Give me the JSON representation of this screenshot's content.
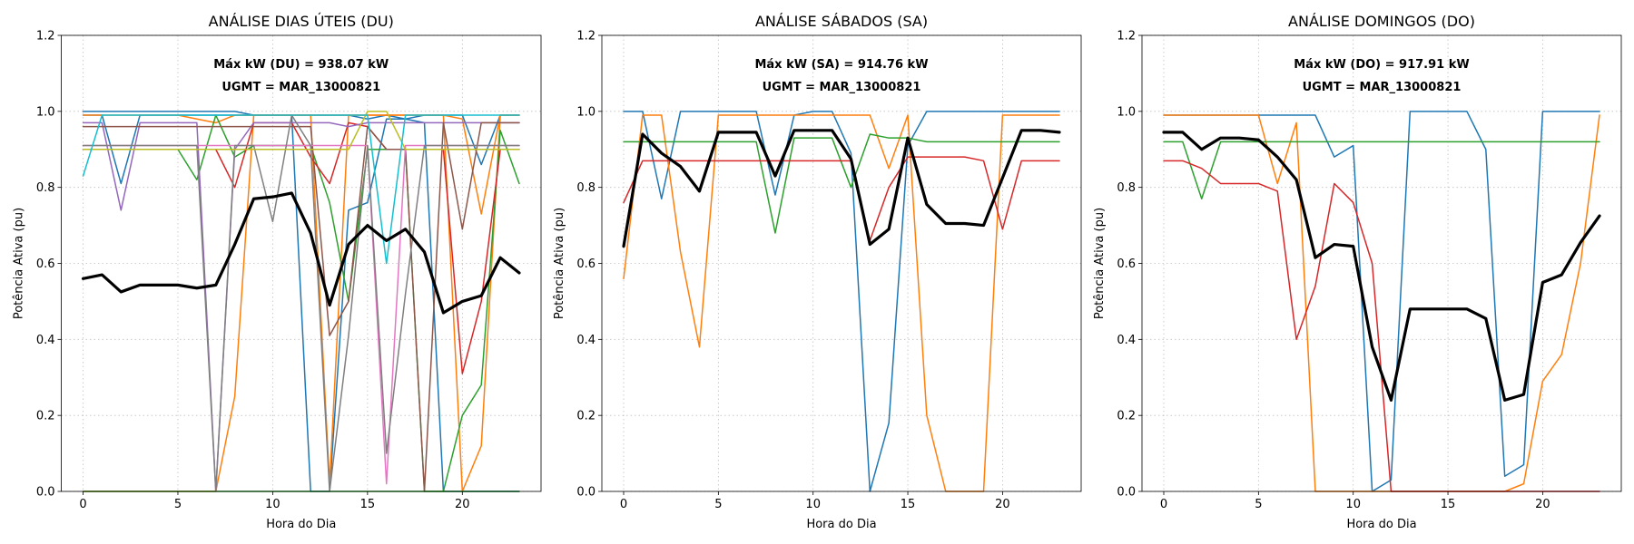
{
  "chart_data": [
    {
      "type": "line",
      "title": "ANÁLISE DIAS ÚTEIS (DU)",
      "annotation_lines": [
        "Máx kW (DU) = 938.07 kW",
        "UGMT = MAR_13000821"
      ],
      "xlabel": "Hora do Dia",
      "ylabel": "Potência Ativa (pu)",
      "xlim": [
        -1.15,
        24.15
      ],
      "ylim": [
        0,
        1.2
      ],
      "xticks": [
        0,
        5,
        10,
        15,
        20
      ],
      "yticks": [
        0.0,
        0.2,
        0.4,
        0.6,
        0.8,
        1.0,
        1.2
      ],
      "grid": true,
      "x": [
        0,
        1,
        2,
        3,
        4,
        5,
        6,
        7,
        8,
        9,
        10,
        11,
        12,
        13,
        14,
        15,
        16,
        17,
        18,
        19,
        20,
        21,
        22,
        23
      ],
      "series": [
        {
          "color": "#1f77b4",
          "values": [
            1.0,
            1.0,
            1.0,
            1.0,
            1.0,
            1.0,
            1.0,
            1.0,
            1.0,
            0.99,
            0.99,
            0.99,
            0.0,
            0.0,
            0.74,
            0.76,
            0.98,
            0.98,
            0.97,
            0.0,
            0.0,
            0.0,
            0.0,
            0.0
          ]
        },
        {
          "color": "#1f77b4",
          "values": [
            0.99,
            0.99,
            0.81,
            0.99,
            0.99,
            0.99,
            0.99,
            0.99,
            0.99,
            0.99,
            0.99,
            0.99,
            0.99,
            0.99,
            0.99,
            0.98,
            0.99,
            0.98,
            0.99,
            0.99,
            0.99,
            0.86,
            0.99,
            0.99
          ]
        },
        {
          "color": "#ff7f0e",
          "values": [
            0.0,
            0.0,
            0.0,
            0.0,
            0.0,
            0.0,
            0.0,
            0.0,
            0.25,
            0.99,
            0.99,
            0.99,
            0.99,
            0.02,
            0.99,
            0.99,
            0.99,
            0.99,
            0.99,
            0.99,
            0.0,
            0.12,
            0.99,
            0.99
          ]
        },
        {
          "color": "#ff7f0e",
          "values": [
            0.99,
            0.99,
            0.99,
            0.99,
            0.99,
            0.99,
            0.98,
            0.97,
            0.99,
            0.99,
            0.99,
            0.99,
            0.99,
            0.99,
            0.99,
            0.99,
            0.99,
            0.99,
            0.99,
            0.99,
            0.98,
            0.73,
            0.99,
            0.99
          ]
        },
        {
          "color": "#2ca02c",
          "values": [
            0.0,
            0.0,
            0.0,
            0.0,
            0.0,
            0.0,
            0.0,
            0.0,
            0.0,
            0.0,
            0.0,
            0.0,
            0.0,
            0.0,
            0.0,
            0.0,
            0.0,
            0.0,
            0.0,
            0.0,
            0.2,
            0.28,
            0.95,
            0.81
          ]
        },
        {
          "color": "#2ca02c",
          "values": [
            0.9,
            0.9,
            0.9,
            0.9,
            0.9,
            0.9,
            0.82,
            0.99,
            0.88,
            0.91,
            0.91,
            0.91,
            0.91,
            0.76,
            0.5,
            0.9,
            0.9,
            0.9,
            0.0,
            0.0,
            0.0,
            0.0,
            0.0,
            0.0
          ]
        },
        {
          "color": "#d62728",
          "values": [
            0.9,
            0.9,
            0.9,
            0.9,
            0.9,
            0.9,
            0.9,
            0.9,
            0.8,
            0.97,
            0.97,
            0.97,
            0.88,
            0.81,
            0.97,
            0.96,
            0.9,
            0.9,
            0.9,
            0.9,
            0.31,
            0.5,
            0.9,
            0.9
          ]
        },
        {
          "color": "#9467bd",
          "values": [
            0.97,
            0.97,
            0.74,
            0.97,
            0.97,
            0.97,
            0.97,
            0.0,
            0.9,
            0.97,
            0.97,
            0.97,
            0.97,
            0.97,
            0.96,
            0.97,
            0.97,
            0.97,
            0.97,
            0.97,
            0.97,
            0.97,
            0.97,
            0.97
          ]
        },
        {
          "color": "#8c564b",
          "values": [
            0.96,
            0.96,
            0.96,
            0.96,
            0.96,
            0.96,
            0.96,
            0.96,
            0.96,
            0.96,
            0.96,
            0.96,
            0.96,
            0.41,
            0.5,
            0.96,
            0.9,
            0.9,
            0.0,
            0.97,
            0.69,
            0.97,
            0.97,
            0.97
          ]
        },
        {
          "color": "#e377c2",
          "values": [
            0.91,
            0.91,
            0.91,
            0.91,
            0.91,
            0.91,
            0.91,
            0.91,
            0.91,
            0.91,
            0.91,
            0.91,
            0.91,
            0.91,
            0.91,
            0.91,
            0.02,
            0.91,
            0.91,
            0.91,
            0.91,
            0.91,
            0.91,
            0.91
          ]
        },
        {
          "color": "#7f7f7f",
          "values": [
            0.91,
            0.91,
            0.91,
            0.91,
            0.91,
            0.91,
            0.91,
            0.0,
            0.91,
            0.91,
            0.71,
            0.99,
            0.91,
            0.0,
            0.41,
            0.91,
            0.1,
            0.52,
            0.91,
            0.91,
            0.91,
            0.91,
            0.91,
            0.91
          ]
        },
        {
          "color": "#bcbd22",
          "values": [
            0.9,
            0.9,
            0.9,
            0.9,
            0.9,
            0.9,
            0.9,
            0.9,
            0.9,
            0.9,
            0.9,
            0.9,
            0.9,
            0.9,
            0.9,
            1.0,
            1.0,
            0.9,
            0.9,
            0.9,
            0.9,
            0.9,
            0.9,
            0.9
          ]
        },
        {
          "color": "#17becf",
          "values": [
            0.83,
            0.99,
            0.99,
            0.99,
            0.99,
            0.99,
            0.99,
            0.99,
            0.99,
            0.99,
            0.99,
            0.99,
            0.99,
            0.99,
            0.99,
            0.99,
            0.6,
            0.99,
            0.99,
            0.99,
            0.99,
            0.99,
            0.99,
            0.99
          ]
        },
        {
          "color": "#000000",
          "width": 3.2,
          "values": [
            0.56,
            0.57,
            0.525,
            0.543,
            0.543,
            0.543,
            0.535,
            0.543,
            0.65,
            0.77,
            0.775,
            0.785,
            0.68,
            0.49,
            0.65,
            0.7,
            0.66,
            0.69,
            0.63,
            0.47,
            0.5,
            0.515,
            0.615,
            0.575
          ]
        }
      ]
    },
    {
      "type": "line",
      "title": "ANÁLISE SÁBADOS (SA)",
      "annotation_lines": [
        "Máx kW (SA) = 914.76 kW",
        "UGMT = MAR_13000821"
      ],
      "xlabel": "Hora do Dia",
      "ylabel": "Potência Ativa (pu)",
      "xlim": [
        -1.15,
        24.15
      ],
      "ylim": [
        0,
        1.2
      ],
      "xticks": [
        0,
        5,
        10,
        15,
        20
      ],
      "yticks": [
        0.0,
        0.2,
        0.4,
        0.6,
        0.8,
        1.0,
        1.2
      ],
      "grid": true,
      "x": [
        0,
        1,
        2,
        3,
        4,
        5,
        6,
        7,
        8,
        9,
        10,
        11,
        12,
        13,
        14,
        15,
        16,
        17,
        18,
        19,
        20,
        21,
        22,
        23
      ],
      "series": [
        {
          "color": "#1f77b4",
          "values": [
            1.0,
            1.0,
            0.77,
            1.0,
            1.0,
            1.0,
            1.0,
            1.0,
            0.78,
            0.99,
            1.0,
            1.0,
            0.89,
            0.0,
            0.18,
            0.91,
            1.0,
            1.0,
            1.0,
            1.0,
            1.0,
            1.0,
            1.0,
            1.0
          ]
        },
        {
          "color": "#ff7f0e",
          "values": [
            0.56,
            0.99,
            0.99,
            0.63,
            0.38,
            0.99,
            0.99,
            0.99,
            0.99,
            0.99,
            0.99,
            0.99,
            0.99,
            0.99,
            0.85,
            0.99,
            0.2,
            0.0,
            0.0,
            0.0,
            0.99,
            0.99,
            0.99,
            0.99
          ]
        },
        {
          "color": "#2ca02c",
          "values": [
            0.92,
            0.92,
            0.92,
            0.92,
            0.92,
            0.92,
            0.92,
            0.92,
            0.68,
            0.93,
            0.93,
            0.93,
            0.8,
            0.94,
            0.93,
            0.93,
            0.92,
            0.92,
            0.92,
            0.92,
            0.92,
            0.92,
            0.92,
            0.92
          ]
        },
        {
          "color": "#d62728",
          "values": [
            0.76,
            0.87,
            0.87,
            0.87,
            0.87,
            0.87,
            0.87,
            0.87,
            0.87,
            0.87,
            0.87,
            0.87,
            0.87,
            0.66,
            0.8,
            0.88,
            0.88,
            0.88,
            0.88,
            0.87,
            0.69,
            0.87,
            0.87,
            0.87
          ]
        },
        {
          "color": "#000000",
          "width": 3.2,
          "values": [
            0.645,
            0.94,
            0.89,
            0.855,
            0.79,
            0.945,
            0.945,
            0.945,
            0.83,
            0.95,
            0.95,
            0.95,
            0.875,
            0.65,
            0.69,
            0.93,
            0.755,
            0.705,
            0.705,
            0.7,
            0.825,
            0.95,
            0.95,
            0.945
          ]
        }
      ]
    },
    {
      "type": "line",
      "title": "ANÁLISE DOMINGOS (DO)",
      "annotation_lines": [
        "Máx kW (DO) = 917.91 kW",
        "UGMT = MAR_13000821"
      ],
      "xlabel": "Hora do Dia",
      "ylabel": "Potência Ativa (pu)",
      "xlim": [
        -1.15,
        24.15
      ],
      "ylim": [
        0,
        1.2
      ],
      "xticks": [
        0,
        5,
        10,
        15,
        20
      ],
      "yticks": [
        0.0,
        0.2,
        0.4,
        0.6,
        0.8,
        1.0,
        1.2
      ],
      "grid": true,
      "x": [
        0,
        1,
        2,
        3,
        4,
        5,
        6,
        7,
        8,
        9,
        10,
        11,
        12,
        13,
        14,
        15,
        16,
        17,
        18,
        19,
        20,
        21,
        22,
        23
      ],
      "series": [
        {
          "color": "#1f77b4",
          "values": [
            0.99,
            0.99,
            0.99,
            0.99,
            0.99,
            0.99,
            0.99,
            0.99,
            0.99,
            0.88,
            0.91,
            0.0,
            0.03,
            1.0,
            1.0,
            1.0,
            1.0,
            0.9,
            0.04,
            0.07,
            1.0,
            1.0,
            1.0,
            1.0
          ]
        },
        {
          "color": "#ff7f0e",
          "values": [
            0.99,
            0.99,
            0.99,
            0.99,
            0.99,
            0.99,
            0.81,
            0.97,
            0.0,
            0.0,
            0.0,
            0.0,
            0.0,
            0.0,
            0.0,
            0.0,
            0.0,
            0.0,
            0.0,
            0.02,
            0.29,
            0.36,
            0.6,
            0.99
          ]
        },
        {
          "color": "#2ca02c",
          "values": [
            0.92,
            0.92,
            0.77,
            0.92,
            0.92,
            0.92,
            0.92,
            0.92,
            0.92,
            0.92,
            0.92,
            0.92,
            0.92,
            0.92,
            0.92,
            0.92,
            0.92,
            0.92,
            0.92,
            0.92,
            0.92,
            0.92,
            0.92,
            0.92
          ]
        },
        {
          "color": "#d62728",
          "values": [
            0.87,
            0.87,
            0.85,
            0.81,
            0.81,
            0.81,
            0.79,
            0.4,
            0.54,
            0.81,
            0.76,
            0.6,
            0.0,
            0.0,
            0.0,
            0.0,
            0.0,
            0.0,
            0.0,
            0.0,
            0.0,
            0.0,
            0.0,
            0.0
          ]
        },
        {
          "color": "#000000",
          "width": 3.2,
          "values": [
            0.945,
            0.945,
            0.9,
            0.93,
            0.93,
            0.925,
            0.88,
            0.82,
            0.615,
            0.65,
            0.645,
            0.38,
            0.24,
            0.48,
            0.48,
            0.48,
            0.48,
            0.455,
            0.24,
            0.255,
            0.55,
            0.57,
            0.655,
            0.725
          ]
        }
      ]
    }
  ]
}
